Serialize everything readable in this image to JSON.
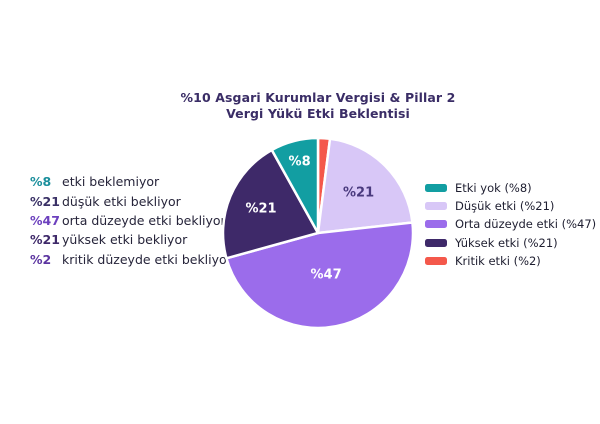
{
  "title": {
    "line1": "%10 Asgari Kurumlar Vergisi & Pillar 2",
    "line2": "Vergi Yükü Etki Beklentisi"
  },
  "summary_list": {
    "items": [
      {
        "value": "%8",
        "label": "etki beklemiyor",
        "color": "#1b8f9c"
      },
      {
        "value": "%21",
        "label": "düşük etki bekliyor",
        "color": "#3a3166"
      },
      {
        "value": "%47",
        "label": "orta düzeyde etki bekliyor",
        "color": "#6c40be"
      },
      {
        "value": "%21",
        "label": "yüksek etki bekliyor",
        "color": "#3e2969"
      },
      {
        "value": "%2",
        "label": "kritik düzeyde etki bekliyor",
        "color": "#5c35a0"
      }
    ]
  },
  "legend": {
    "items": [
      {
        "label": "Etki yok (%8)",
        "color": "#129ea2"
      },
      {
        "label": "Düşük etki (%21)",
        "color": "#d8c7f7"
      },
      {
        "label": "Orta düzeyde etki (%47)",
        "color": "#9b6ceb"
      },
      {
        "label": "Yüksek etki (%21)",
        "color": "#3e2969"
      },
      {
        "label": "Kritik etki (%2)",
        "color": "#f4584b"
      }
    ]
  },
  "chart_data": {
    "type": "pie",
    "title": "%10 Asgari Kurumlar Vergisi & Pillar 2 — Vergi Yükü Etki Beklentisi",
    "start_angle_deg": 0,
    "direction": "clockwise",
    "legend_position": "right",
    "slices": [
      {
        "name": "Kritik etki",
        "value": 2,
        "color": "#f4584b",
        "label": "",
        "label_color": "#ffffff"
      },
      {
        "name": "Düşük etki",
        "value": 21,
        "color": "#d8c7f7",
        "label": "%21",
        "label_color": "#4a3a7e"
      },
      {
        "name": "Orta düzeyde etki",
        "value": 47,
        "color": "#9b6ceb",
        "label": "%47",
        "label_color": "#ffffff"
      },
      {
        "name": "Yüksek etki",
        "value": 21,
        "color": "#3e2969",
        "label": "%21",
        "label_color": "#ffffff"
      },
      {
        "name": "Etki yok",
        "value": 8,
        "color": "#129ea2",
        "label": "%8",
        "label_color": "#ffffff"
      }
    ]
  }
}
